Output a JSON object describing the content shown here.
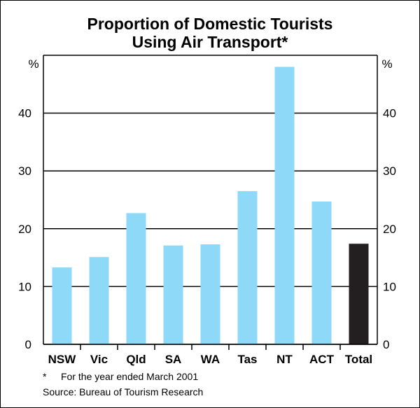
{
  "title_line1": "Proportion of Domestic Tourists",
  "title_line2": "Using Air Transport*",
  "footnote_marker": "*",
  "footnote_text": "For the year ended March 2001",
  "source": "Source: Bureau of Tourism Research",
  "colors": {
    "bar": "#8ed8f8",
    "highlight": "#231f20",
    "grid": "#000000"
  },
  "chart_data": {
    "type": "bar",
    "categories": [
      "NSW",
      "Vic",
      "Qld",
      "SA",
      "WA",
      "Tas",
      "NT",
      "ACT",
      "Total"
    ],
    "values": [
      13.3,
      15.1,
      22.7,
      17.1,
      17.3,
      26.5,
      48.0,
      24.7,
      17.4
    ],
    "highlight_index": 8,
    "ylim": [
      0,
      50
    ],
    "yticks": [
      0,
      10,
      20,
      30,
      40
    ],
    "ylabel_left": "%",
    "ylabel_right": "%",
    "grid": true
  }
}
